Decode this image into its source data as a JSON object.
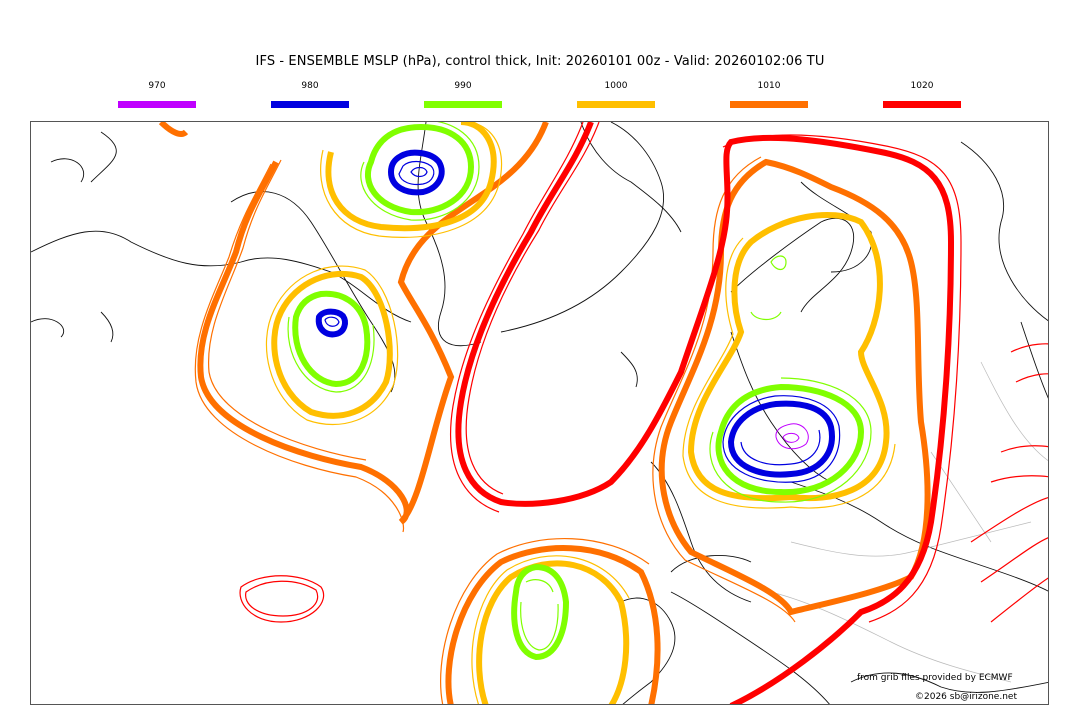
{
  "title": "IFS - ENSEMBLE MSLP (hPa), control thick, Init: 20260101 00z - Valid: 20260102:06 TU",
  "legend": [
    {
      "label": "970",
      "color": "#c000ff"
    },
    {
      "label": "980",
      "color": "#0000e0"
    },
    {
      "label": "990",
      "color": "#80ff00"
    },
    {
      "label": "1000",
      "color": "#ffbf00"
    },
    {
      "label": "1010",
      "color": "#ff7000"
    },
    {
      "label": "1020",
      "color": "#ff0000"
    }
  ],
  "credit_source": "from grib files provided by ECMWF",
  "credit_copyright": "©2026 sb@irizone.net"
}
